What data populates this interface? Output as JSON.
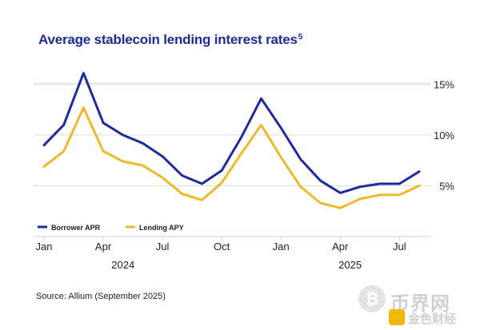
{
  "title": "Average stablecoin lending interest rates",
  "title_footnote": "5",
  "source": "Source: Allium (September 2025)",
  "watermark": {
    "text": "币界网",
    "sub_text": "金色财经",
    "coin_glyph": "₿"
  },
  "chart_data": {
    "type": "line",
    "title": "Average stablecoin lending interest rates",
    "x": [
      "2024-01",
      "2024-02",
      "2024-03",
      "2024-04",
      "2024-05",
      "2024-06",
      "2024-07",
      "2024-08",
      "2024-09",
      "2024-10",
      "2024-11",
      "2024-12",
      "2025-01",
      "2025-02",
      "2025-03",
      "2025-04",
      "2025-05",
      "2025-06",
      "2025-07",
      "2025-08"
    ],
    "x_ticks": [
      {
        "index": 0,
        "label": "Jan"
      },
      {
        "index": 3,
        "label": "Apr"
      },
      {
        "index": 6,
        "label": "Jul"
      },
      {
        "index": 9,
        "label": "Oct"
      },
      {
        "index": 12,
        "label": "Jan"
      },
      {
        "index": 15,
        "label": "Apr"
      },
      {
        "index": 18,
        "label": "Jul"
      }
    ],
    "year_labels": [
      {
        "index": 4,
        "label": "2024"
      },
      {
        "index": 15.5,
        "label": "2025"
      }
    ],
    "y_ticks": [
      5,
      10,
      15
    ],
    "y_tick_suffix": "%",
    "ylim": [
      0,
      17.5
    ],
    "ylabel": "",
    "xlabel": "",
    "grid": true,
    "legend_position": "lower-left",
    "series": [
      {
        "name": "Borrower APR",
        "color": "#1c2a9c",
        "values": [
          9.0,
          11.0,
          16.1,
          11.2,
          10.0,
          9.2,
          7.9,
          6.0,
          5.2,
          6.5,
          9.8,
          13.6,
          10.7,
          7.6,
          5.5,
          4.3,
          4.9,
          5.2,
          5.2,
          6.4
        ]
      },
      {
        "name": "Lending APY",
        "color": "#ecb82e",
        "values": [
          6.9,
          8.4,
          12.7,
          8.4,
          7.4,
          7.0,
          5.8,
          4.2,
          3.6,
          5.3,
          8.2,
          11.0,
          7.8,
          4.9,
          3.3,
          2.8,
          3.7,
          4.1,
          4.1,
          5.0
        ]
      }
    ]
  }
}
